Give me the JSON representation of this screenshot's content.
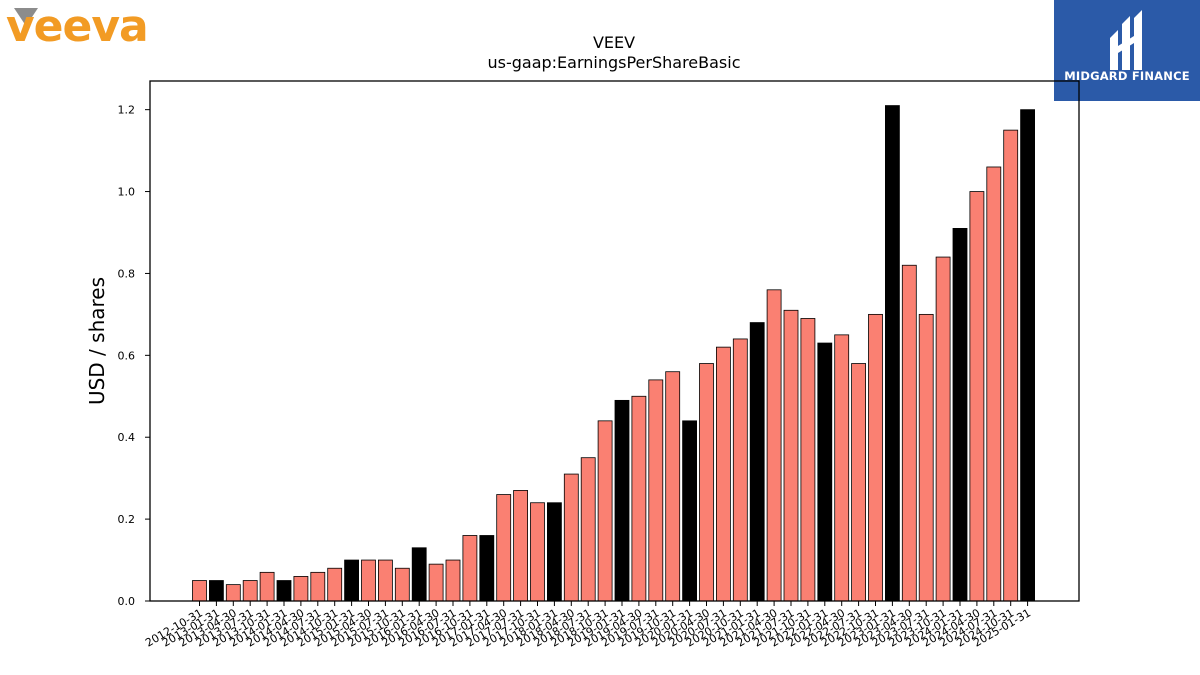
{
  "header": {
    "company_logo": {
      "text": "veeva",
      "color": "#f29b24",
      "accent": "#8c8c8c"
    },
    "publisher_logo": {
      "text": "MIDGARD FINANCE",
      "background": "#2b5aa8",
      "icon": "midgard-m-icon"
    }
  },
  "chart_data": {
    "type": "bar",
    "title": "VEEV",
    "subtitle": "us-gaap:EarningsPerShareBasic",
    "xlabel": "",
    "ylabel": "USD / shares",
    "ylim": [
      0,
      1.27
    ],
    "yticks": [
      "0.0",
      "0.2",
      "0.4",
      "0.6",
      "0.8",
      "1.0",
      "1.2"
    ],
    "grid": false,
    "colors": {
      "quarter": "#fa8072",
      "fiscal_year_end": "#000000",
      "edge": "#000000"
    },
    "categories": [
      "2012-10-31",
      "2013-01-31",
      "2013-04-30",
      "2013-07-31",
      "2013-10-31",
      "2014-01-31",
      "2014-04-30",
      "2014-07-31",
      "2014-10-31",
      "2015-01-31",
      "2015-04-30",
      "2015-07-31",
      "2015-10-31",
      "2016-01-31",
      "2016-04-30",
      "2016-07-31",
      "2016-10-31",
      "2017-01-31",
      "2017-04-30",
      "2017-07-31",
      "2017-10-31",
      "2018-01-31",
      "2018-04-30",
      "2018-07-31",
      "2018-10-31",
      "2019-01-31",
      "2019-04-30",
      "2019-07-31",
      "2019-10-31",
      "2020-01-31",
      "2020-04-30",
      "2020-07-31",
      "2020-10-31",
      "2021-01-31",
      "2021-04-30",
      "2021-07-31",
      "2021-10-31",
      "2022-01-31",
      "2022-04-30",
      "2022-07-31",
      "2022-10-31",
      "2023-01-31",
      "2023-04-30",
      "2023-07-31",
      "2023-10-31",
      "2024-01-31",
      "2024-04-30",
      "2024-07-31",
      "2024-10-31",
      "2025-01-31"
    ],
    "values": [
      0.05,
      0.05,
      0.04,
      0.05,
      0.07,
      0.05,
      0.06,
      0.07,
      0.08,
      0.1,
      0.1,
      0.1,
      0.08,
      0.13,
      0.09,
      0.1,
      0.16,
      0.16,
      0.26,
      0.27,
      0.24,
      0.24,
      0.31,
      0.35,
      0.44,
      0.49,
      0.5,
      0.54,
      0.56,
      0.44,
      0.58,
      0.62,
      0.64,
      0.68,
      0.76,
      0.71,
      0.69,
      0.63,
      0.65,
      0.58,
      0.7,
      1.21,
      0.82,
      0.7,
      0.84,
      0.91,
      1.0,
      1.06,
      1.15,
      1.2
    ],
    "fiscal_year_end": [
      false,
      true,
      false,
      false,
      false,
      true,
      false,
      false,
      false,
      true,
      false,
      false,
      false,
      true,
      false,
      false,
      false,
      true,
      false,
      false,
      false,
      true,
      false,
      false,
      false,
      true,
      false,
      false,
      false,
      true,
      false,
      false,
      false,
      true,
      false,
      false,
      false,
      true,
      false,
      false,
      false,
      true,
      false,
      false,
      false,
      true,
      false,
      false,
      false,
      true
    ]
  }
}
